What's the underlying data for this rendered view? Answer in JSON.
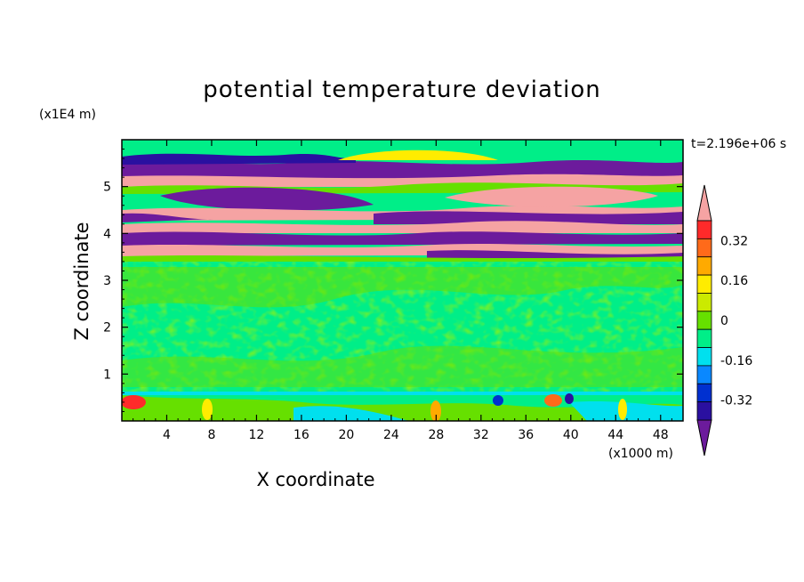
{
  "chart_data": {
    "type": "heatmap",
    "title": "potential temperature deviation",
    "xlabel": "X coordinate",
    "ylabel": "Z coordinate",
    "x_unit": "(x1000 m)",
    "y_unit": "(x1E4 m)",
    "time_label": "t=2.196e+06 s",
    "x_ticks": [
      4,
      8,
      12,
      16,
      20,
      24,
      28,
      32,
      36,
      40,
      44,
      48
    ],
    "y_ticks": [
      1,
      2,
      3,
      4,
      5
    ],
    "xlim": [
      0,
      50
    ],
    "ylim": [
      0,
      6
    ],
    "colorbar": {
      "labels": [
        "0.32",
        "0.16",
        "0",
        "-0.16",
        "-0.32"
      ],
      "label_values": [
        0.32,
        0.16,
        0,
        -0.16,
        -0.32
      ],
      "levels": [
        -0.48,
        -0.4,
        -0.32,
        -0.24,
        -0.16,
        -0.08,
        0,
        0.08,
        0.16,
        0.24,
        0.32,
        0.4,
        0.48
      ],
      "colors": [
        "#6c1b9c",
        "#2a10a0",
        "#0030d0",
        "#0a88ff",
        "#00e0ee",
        "#00ee88",
        "#66e000",
        "#cbea00",
        "#ffec00",
        "#ffaa00",
        "#ff6a1a",
        "#ff2a2a",
        "#f5a3a3"
      ],
      "extend": "both"
    }
  }
}
